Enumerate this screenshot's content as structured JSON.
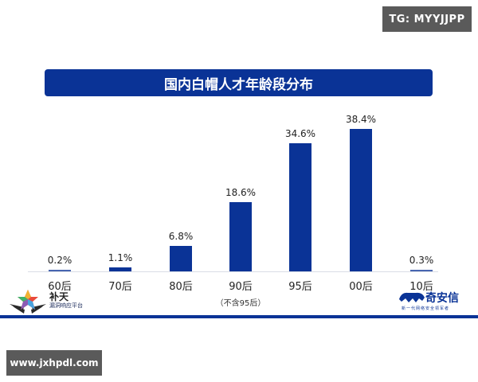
{
  "watermark_top": "TG: MYYJJPP",
  "watermark_bottom": "www.jxhpdl.com",
  "chart_title": "国内白帽人才年龄段分布",
  "note_90": "（不含95后）",
  "logos": {
    "left": {
      "name": "补天",
      "sub": "漏洞响应平台",
      "icon": "star-wings-icon"
    },
    "right": {
      "name": "奇安信",
      "sub": "新一代网络安全领军者",
      "icon": "tiger-icon"
    }
  },
  "colors": {
    "bar": "#0a3396",
    "title_bg": "#0a3396",
    "badge_bg": "#5a5a5a"
  },
  "chart_data": {
    "type": "bar",
    "title": "国内白帽人才年龄段分布",
    "categories": [
      "60后",
      "70后",
      "80后",
      "90后",
      "95后",
      "00后",
      "10后"
    ],
    "values": [
      0.2,
      1.1,
      6.8,
      18.6,
      34.6,
      38.4,
      0.3
    ],
    "value_labels": [
      "0.2%",
      "1.1%",
      "6.8%",
      "18.6%",
      "34.6%",
      "38.4%",
      "0.3%"
    ],
    "annotations": [
      {
        "category": "90后",
        "text": "（不含95后）"
      }
    ],
    "xlabel": "",
    "ylabel": "",
    "ylim": [
      0,
      40
    ],
    "grid": false,
    "legend": "none"
  }
}
